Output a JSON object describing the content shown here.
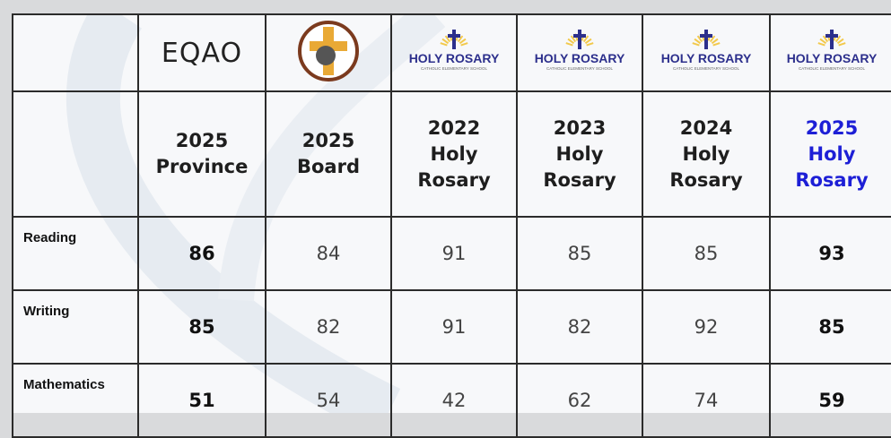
{
  "logos": {
    "eqao": "EQAO",
    "school_name": "HOLY ROSARY",
    "school_subtitle": "CATHOLIC ELEMENTARY SCHOOL"
  },
  "table": {
    "columns": [
      [
        "2025",
        "Province"
      ],
      [
        "2025",
        "Board"
      ],
      [
        "2022",
        "Holy",
        "Rosary"
      ],
      [
        "2023",
        "Holy",
        "Rosary"
      ],
      [
        "2024",
        "Holy",
        "Rosary"
      ],
      [
        "2025",
        "Holy",
        "Rosary"
      ]
    ],
    "rows": [
      {
        "label": "Reading",
        "values": [
          86,
          84,
          91,
          85,
          85,
          93
        ]
      },
      {
        "label": "Writing",
        "values": [
          85,
          82,
          91,
          82,
          92,
          85
        ]
      },
      {
        "label": "Mathematics",
        "values": [
          51,
          54,
          42,
          62,
          74,
          59
        ]
      }
    ]
  }
}
